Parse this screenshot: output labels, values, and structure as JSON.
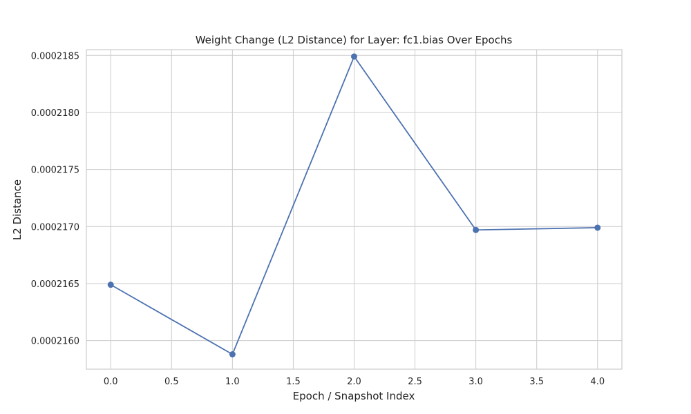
{
  "chart_data": {
    "type": "line",
    "title": "Weight Change (L2 Distance) for Layer: fc1.bias Over Epochs",
    "xlabel": "Epoch / Snapshot Index",
    "ylabel": "L2 Distance",
    "x": [
      0,
      1,
      2,
      3,
      4
    ],
    "series": [
      {
        "values": [
          0.00021649,
          0.00021588,
          0.00021849,
          0.00021697,
          0.00021699
        ],
        "color": "#4c72b0",
        "marker": "circle"
      }
    ],
    "xlim": [
      -0.2,
      4.2
    ],
    "ylim": [
      0.00021575,
      0.00021855
    ],
    "x_ticks": [
      0.0,
      0.5,
      1.0,
      1.5,
      2.0,
      2.5,
      3.0,
      3.5,
      4.0
    ],
    "x_tick_labels": [
      "0.0",
      "0.5",
      "1.0",
      "1.5",
      "2.0",
      "2.5",
      "3.0",
      "3.5",
      "4.0"
    ],
    "y_ticks": [
      0.000216,
      0.0002165,
      0.000217,
      0.0002175,
      0.000218,
      0.0002185
    ],
    "y_tick_labels": [
      "0.0002160",
      "0.0002165",
      "0.0002170",
      "0.0002175",
      "0.0002180",
      "0.0002185"
    ],
    "grid": true,
    "legend": "none"
  }
}
